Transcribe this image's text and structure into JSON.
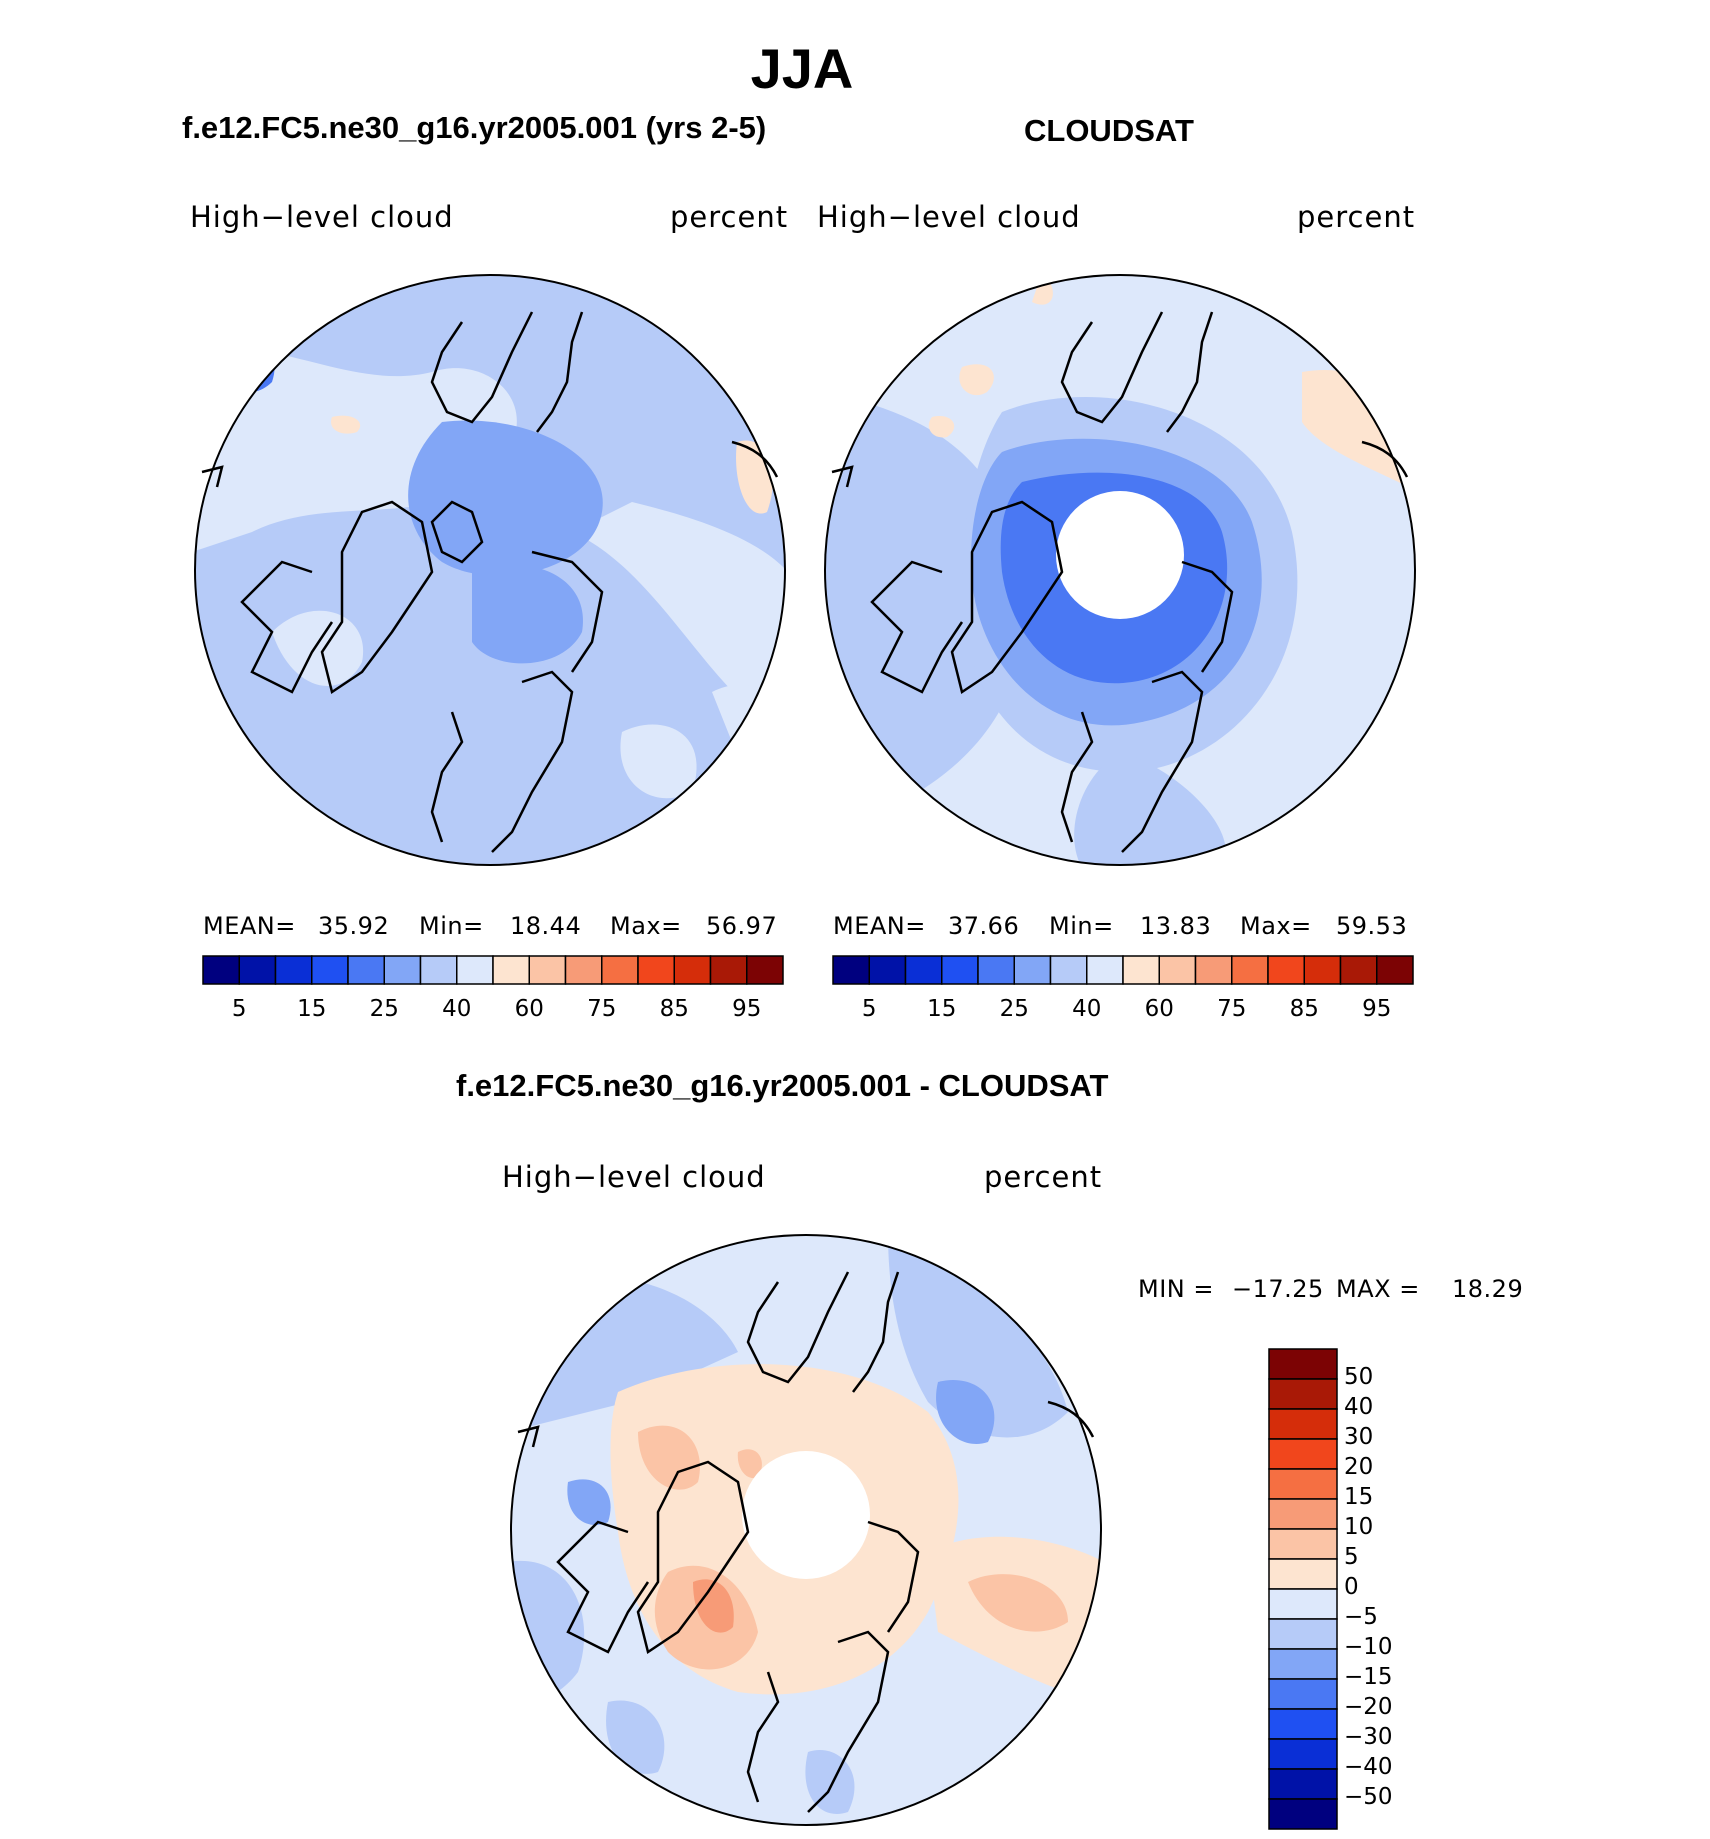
{
  "title": "JJA",
  "panels": [
    {
      "title": "f.e12.FC5.ne30_g16.yr2005.001 (yrs 2-5)",
      "left_label": "High−level  cloud",
      "right_label": "percent",
      "stats": {
        "mean_label": "MEAN=",
        "mean": "35.92",
        "min_label": "Min=",
        "min": "18.44",
        "max_label": "Max=",
        "max": "56.97"
      }
    },
    {
      "title": "CLOUDSAT",
      "left_label": "High−level  cloud",
      "right_label": "percent",
      "stats": {
        "mean_label": "MEAN=",
        "mean": "37.66",
        "min_label": "Min=",
        "min": "13.83",
        "max_label": "Max=",
        "max": "59.53"
      }
    },
    {
      "title": "f.e12.FC5.ne30_g16.yr2005.001 - CLOUDSAT",
      "left_label": "High−level  cloud",
      "right_label": "percent",
      "stats": {
        "min_label": "MIN  =",
        "min": "−17.25",
        "max_label": "MAX  =",
        "max": "18.29"
      }
    }
  ],
  "chart_data": [
    {
      "type": "heatmap",
      "projection": "north polar stereographic",
      "variable": "High-level cloud",
      "units": "percent",
      "stats": {
        "mean": 35.92,
        "min": 18.44,
        "max": 56.97
      },
      "colorbar": {
        "orientation": "horizontal",
        "tick_labels": [
          "5",
          "15",
          "25",
          "40",
          "60",
          "75",
          "85",
          "95"
        ],
        "colors": [
          "#00007f",
          "#0012a8",
          "#0a2fd6",
          "#1f50f2",
          "#4a78f3",
          "#82a6f6",
          "#b6cbf8",
          "#dde8fb",
          "#fde4d0",
          "#fbc4a6",
          "#f79b77",
          "#f56f42",
          "#f1461c",
          "#d52d0a",
          "#a91906",
          "#7c0304"
        ]
      }
    },
    {
      "type": "heatmap",
      "projection": "north polar stereographic",
      "variable": "High-level cloud",
      "units": "percent",
      "stats": {
        "mean": 37.66,
        "min": 13.83,
        "max": 59.53
      },
      "colorbar": {
        "orientation": "horizontal",
        "tick_labels": [
          "5",
          "15",
          "25",
          "40",
          "60",
          "75",
          "85",
          "95"
        ],
        "colors": [
          "#00007f",
          "#0012a8",
          "#0a2fd6",
          "#1f50f2",
          "#4a78f3",
          "#82a6f6",
          "#b6cbf8",
          "#dde8fb",
          "#fde4d0",
          "#fbc4a6",
          "#f79b77",
          "#f56f42",
          "#f1461c",
          "#d52d0a",
          "#a91906",
          "#7c0304"
        ]
      }
    },
    {
      "type": "heatmap",
      "projection": "north polar stereographic",
      "variable": "High-level cloud",
      "units": "percent",
      "stats": {
        "min": -17.25,
        "max": 18.29
      },
      "colorbar": {
        "orientation": "vertical",
        "tick_labels": [
          "50",
          "40",
          "30",
          "20",
          "15",
          "10",
          "5",
          "0",
          "−5",
          "−10",
          "−15",
          "−20",
          "−30",
          "−40",
          "−50"
        ],
        "colors": [
          "#7c0304",
          "#a91906",
          "#d52d0a",
          "#f1461c",
          "#f56f42",
          "#f79b77",
          "#fbc4a6",
          "#fde4d0",
          "#dde8fb",
          "#b6cbf8",
          "#82a6f6",
          "#4a78f3",
          "#1f50f2",
          "#0a2fd6",
          "#0012a8",
          "#00007f"
        ]
      }
    }
  ]
}
